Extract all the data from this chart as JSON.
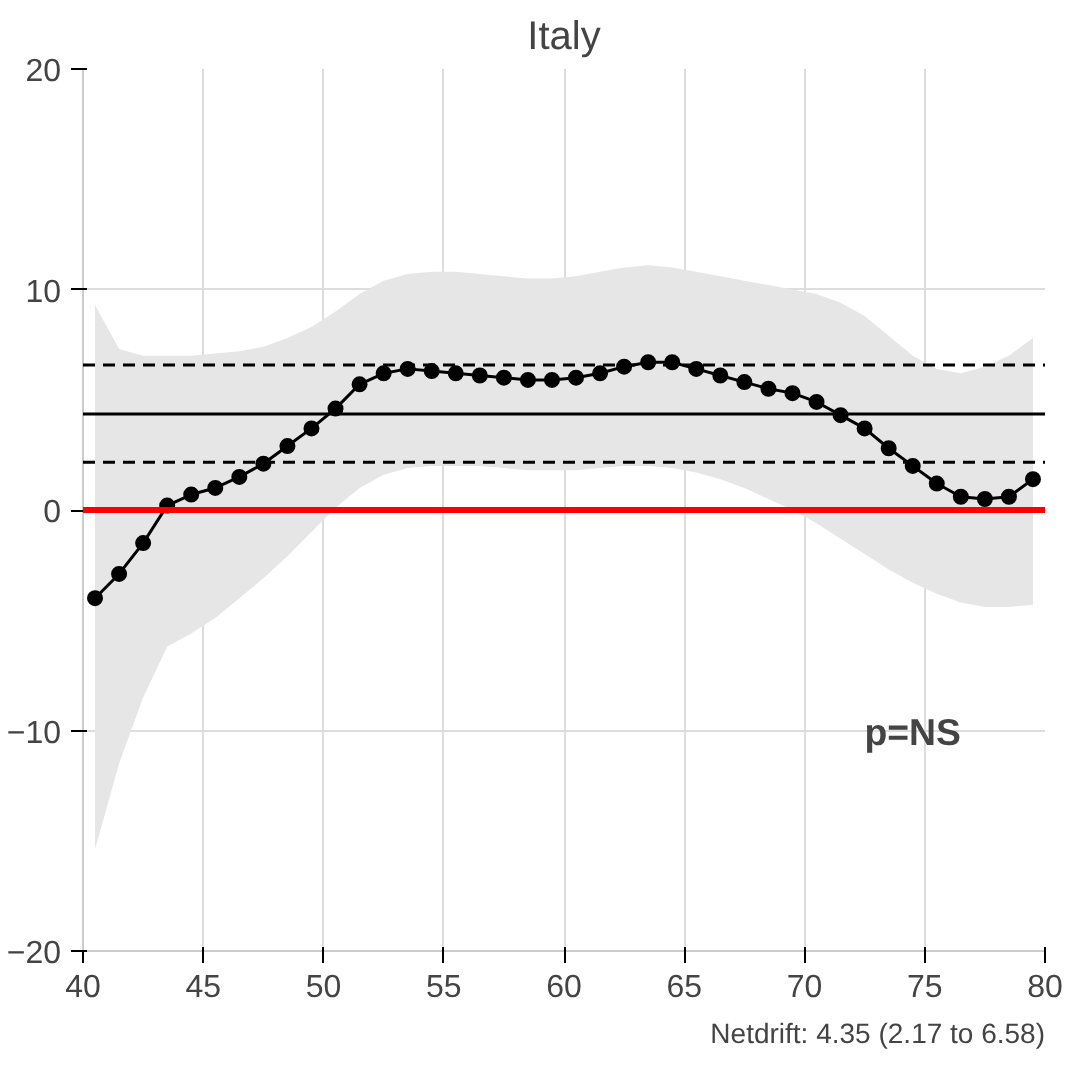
{
  "chart_data": {
    "type": "line",
    "title": "Italy",
    "x": [
      40.5,
      41.5,
      42.5,
      43.5,
      44.5,
      45.5,
      46.5,
      47.5,
      48.5,
      49.5,
      50.5,
      51.5,
      52.5,
      53.5,
      54.5,
      55.5,
      56.5,
      57.5,
      58.5,
      59.5,
      60.5,
      61.5,
      62.5,
      63.5,
      64.5,
      65.5,
      66.5,
      67.5,
      68.5,
      69.5,
      70.5,
      71.5,
      72.5,
      73.5,
      74.5,
      75.5,
      76.5,
      77.5,
      78.5,
      79.5
    ],
    "series": [
      {
        "color": "#000000",
        "values": [
          -4.0,
          -2.9,
          -1.5,
          0.2,
          0.7,
          1.0,
          1.5,
          2.1,
          2.9,
          3.7,
          4.6,
          5.7,
          6.2,
          6.4,
          6.3,
          6.2,
          6.1,
          6.0,
          5.9,
          5.9,
          6.0,
          6.2,
          6.5,
          6.7,
          6.7,
          6.4,
          6.1,
          5.8,
          5.5,
          5.3,
          4.9,
          4.3,
          3.7,
          2.8,
          2.0,
          1.2,
          0.6,
          0.5,
          0.6,
          1.4
        ],
        "upper": [
          9.3,
          7.3,
          7.0,
          7.0,
          7.0,
          7.1,
          7.2,
          7.4,
          7.8,
          8.3,
          9.0,
          9.8,
          10.4,
          10.7,
          10.8,
          10.8,
          10.7,
          10.6,
          10.5,
          10.5,
          10.6,
          10.8,
          11.0,
          11.1,
          11.0,
          10.8,
          10.6,
          10.4,
          10.2,
          10.0,
          9.8,
          9.4,
          8.8,
          7.9,
          7.0,
          6.4,
          6.2,
          6.5,
          7.0,
          7.8
        ],
        "lower": [
          -15.4,
          -11.5,
          -8.5,
          -6.2,
          -5.6,
          -4.9,
          -4.0,
          -3.1,
          -2.1,
          -1.0,
          0.1,
          1.0,
          1.6,
          1.9,
          2.0,
          2.0,
          2.0,
          1.9,
          1.8,
          1.8,
          1.8,
          1.9,
          2.0,
          2.0,
          1.9,
          1.7,
          1.4,
          1.0,
          0.5,
          0.0,
          -0.6,
          -1.3,
          -2.0,
          -2.7,
          -3.3,
          -3.8,
          -4.2,
          -4.4,
          -4.4,
          -4.3
        ]
      }
    ],
    "ref_lines": [
      {
        "axis": "y",
        "value": 0,
        "color": "#ff0000",
        "line_style": "solid"
      },
      {
        "axis": "y",
        "value": 4.35,
        "color": "#000000",
        "line_style": "solid"
      },
      {
        "axis": "y",
        "value": 2.17,
        "color": "#000000",
        "line_style": "dashed"
      },
      {
        "axis": "y",
        "value": 6.58,
        "color": "#000000",
        "line_style": "dashed"
      }
    ],
    "annotations": [
      "p=NS",
      "Netdrift: 4.35 (2.17 to 6.58)"
    ],
    "xlim": [
      40,
      80
    ],
    "ylim": [
      -20,
      20
    ],
    "xticks": [
      40,
      45,
      50,
      55,
      60,
      65,
      70,
      75,
      80
    ],
    "yticks": [
      -20,
      -10,
      0,
      10,
      20
    ],
    "grid": true,
    "marker": "circle",
    "line_style": "solid"
  }
}
